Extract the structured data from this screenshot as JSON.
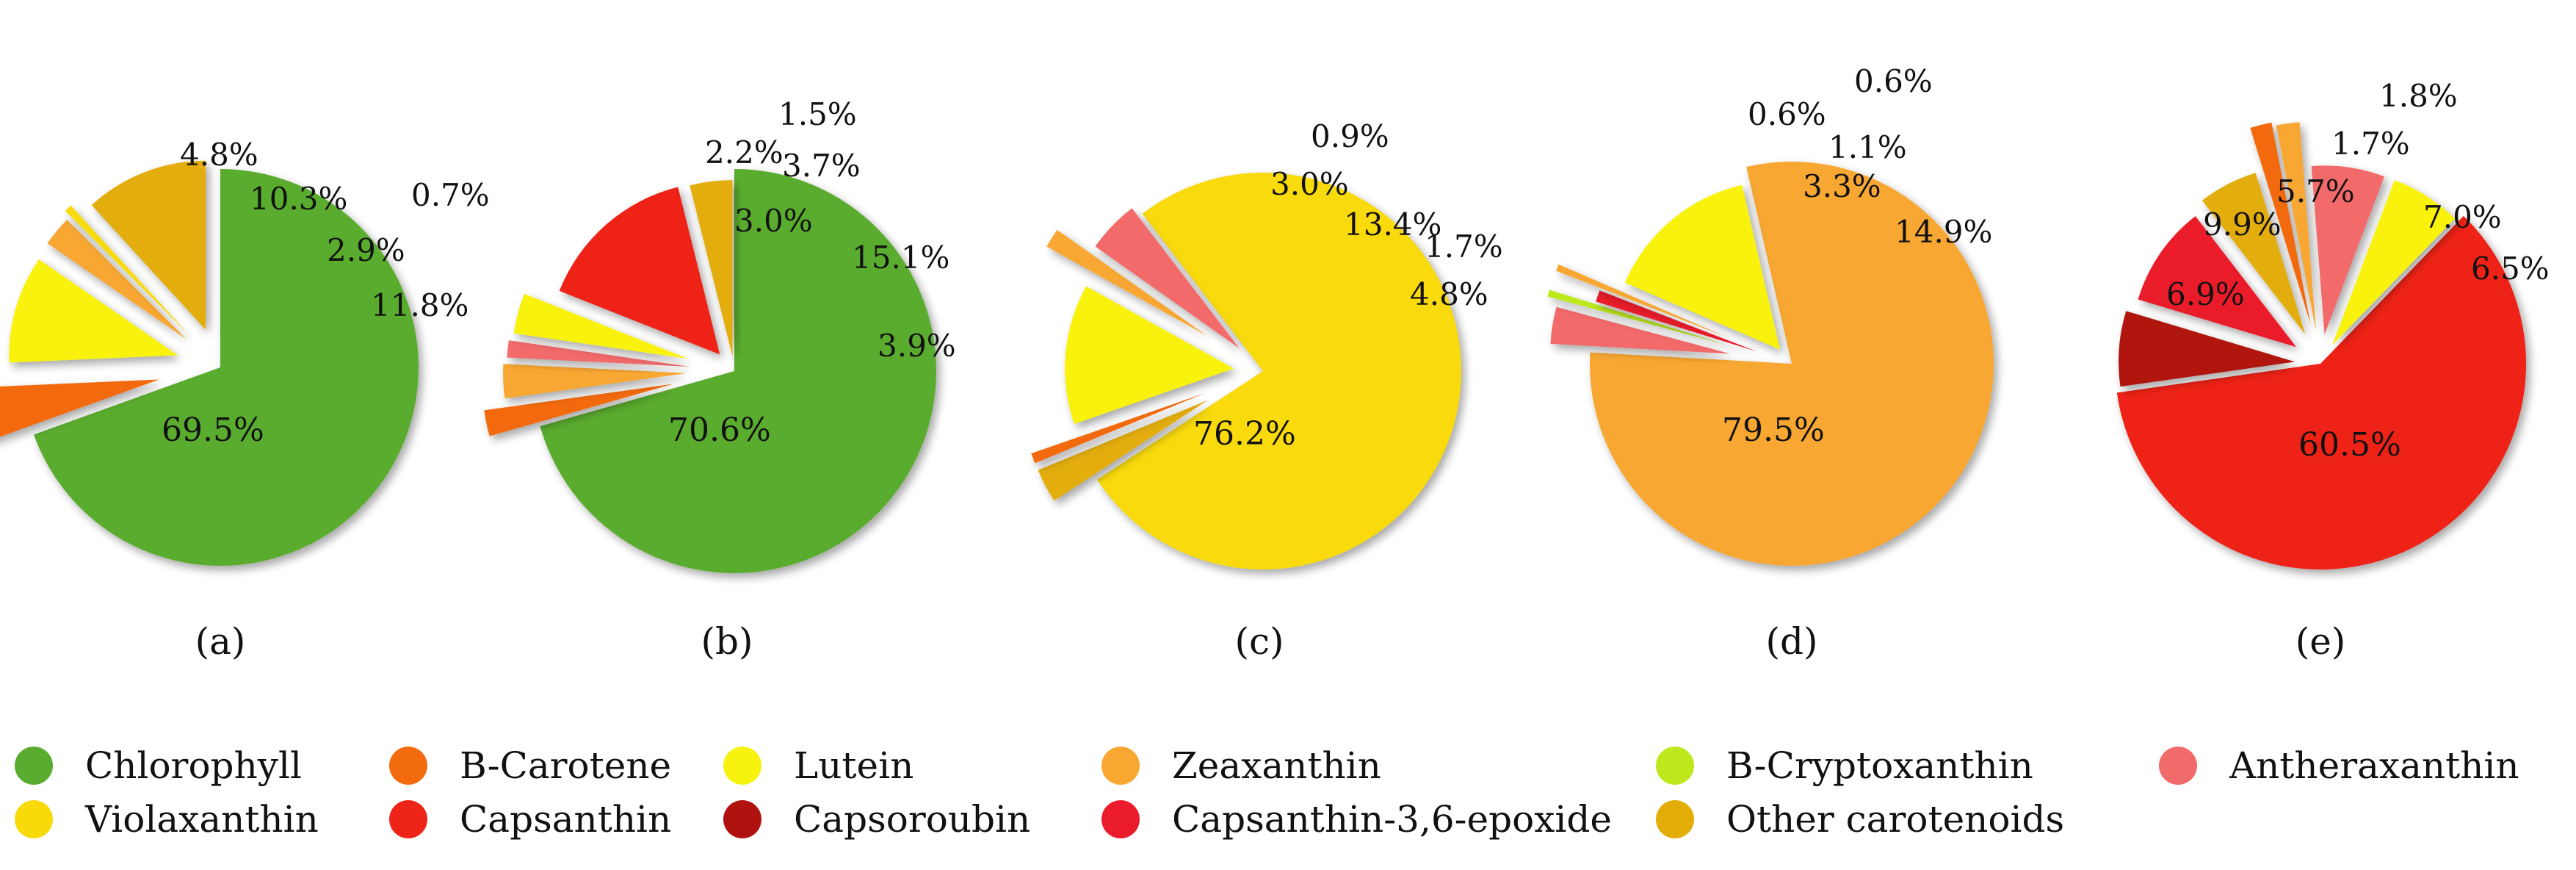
{
  "chart_data": [
    {
      "type": "pie",
      "caption": "(a)",
      "slices": [
        {
          "name": "Chlorophyll",
          "value": 69.5,
          "label": "69.5%"
        },
        {
          "name": "B-Carotene",
          "value": 4.8,
          "label": "4.8%"
        },
        {
          "name": "Lutein",
          "value": 10.3,
          "label": "10.3%"
        },
        {
          "name": "Zeaxanthin",
          "value": 2.9,
          "label": "2.9%"
        },
        {
          "name": "Violaxanthin",
          "value": 0.7,
          "label": "0.7%"
        },
        {
          "name": "Other carotenoids",
          "value": 11.8,
          "label": "11.8%"
        }
      ]
    },
    {
      "type": "pie",
      "caption": "(b)",
      "slices": [
        {
          "name": "Chlorophyll",
          "value": 70.6,
          "label": "70.6%"
        },
        {
          "name": "B-Carotene",
          "value": 2.2,
          "label": "2.2%"
        },
        {
          "name": "Zeaxanthin",
          "value": 3.0,
          "label": "3.0%"
        },
        {
          "name": "Antheraxanthin",
          "value": 1.5,
          "label": "1.5%"
        },
        {
          "name": "Lutein",
          "value": 3.7,
          "label": "3.7%"
        },
        {
          "name": "Capsanthin",
          "value": 15.1,
          "label": "15.1%"
        },
        {
          "name": "Other carotenoids",
          "value": 3.9,
          "label": "3.9%"
        }
      ]
    },
    {
      "type": "pie",
      "caption": "(c)",
      "slices": [
        {
          "name": "Violaxanthin",
          "value": 76.2,
          "label": "76.2%"
        },
        {
          "name": "Other carotenoids",
          "value": 3.0,
          "label": "3.0%"
        },
        {
          "name": "B-Carotene",
          "value": 0.9,
          "label": "0.9%"
        },
        {
          "name": "Lutein",
          "value": 13.4,
          "label": "13.4%"
        },
        {
          "name": "Zeaxanthin",
          "value": 1.7,
          "label": "1.7%"
        },
        {
          "name": "Antheraxanthin",
          "value": 4.8,
          "label": "4.8%"
        }
      ]
    },
    {
      "type": "pie",
      "caption": "(d)",
      "slices": [
        {
          "name": "Zeaxanthin",
          "value": 79.5,
          "label": "79.5%"
        },
        {
          "name": "Antheraxanthin",
          "value": 3.3,
          "label": "3.3%"
        },
        {
          "name": "B-Cryptoxanthin",
          "value": 0.6,
          "label": "0.6%"
        },
        {
          "name": "Capsanthin-3,6-epoxide",
          "value": 1.1,
          "label": "1.1%"
        },
        {
          "name": "Zeaxanthin",
          "value": 0.6,
          "label": "0.6%"
        },
        {
          "name": "Lutein",
          "value": 14.9,
          "label": "14.9%"
        }
      ]
    },
    {
      "type": "pie",
      "caption": "(e)",
      "slices": [
        {
          "name": "Capsanthin",
          "value": 60.5,
          "label": "60.5%"
        },
        {
          "name": "Capsoroubin",
          "value": 6.9,
          "label": "6.9%"
        },
        {
          "name": "Capsanthin-3,6-epoxide",
          "value": 9.9,
          "label": "9.9%"
        },
        {
          "name": "Other carotenoids",
          "value": 5.7,
          "label": "5.7%"
        },
        {
          "name": "B-Carotene",
          "value": 1.7,
          "label": "1.7%"
        },
        {
          "name": "Zeaxanthin",
          "value": 1.8,
          "label": "1.8%"
        },
        {
          "name": "Antheraxanthin",
          "value": 7.0,
          "label": "7.0%"
        },
        {
          "name": "Lutein",
          "value": 6.5,
          "label": "6.5%"
        }
      ]
    }
  ],
  "legend": [
    [
      {
        "name": "Chlorophyll",
        "color": "#5aac2e"
      },
      {
        "name": "B-Carotene",
        "color": "#f26b0f"
      },
      {
        "name": "Lutein",
        "color": "#f8f20f"
      },
      {
        "name": "Zeaxanthin",
        "color": "#f8a730"
      },
      {
        "name": "B-Cryptoxanthin",
        "color": "#bde81c"
      },
      {
        "name": "Antheraxanthin",
        "color": "#f26b6b"
      }
    ],
    [
      {
        "name": "Violaxanthin",
        "color": "#f8da0a"
      },
      {
        "name": "Capsanthin",
        "color": "#ee2418"
      },
      {
        "name": "Capsoroubin",
        "color": "#b0130f"
      },
      {
        "name": "Capsanthin-3,6-epoxide",
        "color": "#ea1c2c"
      },
      {
        "name": "Other carotenoids",
        "color": "#e3ad08"
      }
    ]
  ]
}
